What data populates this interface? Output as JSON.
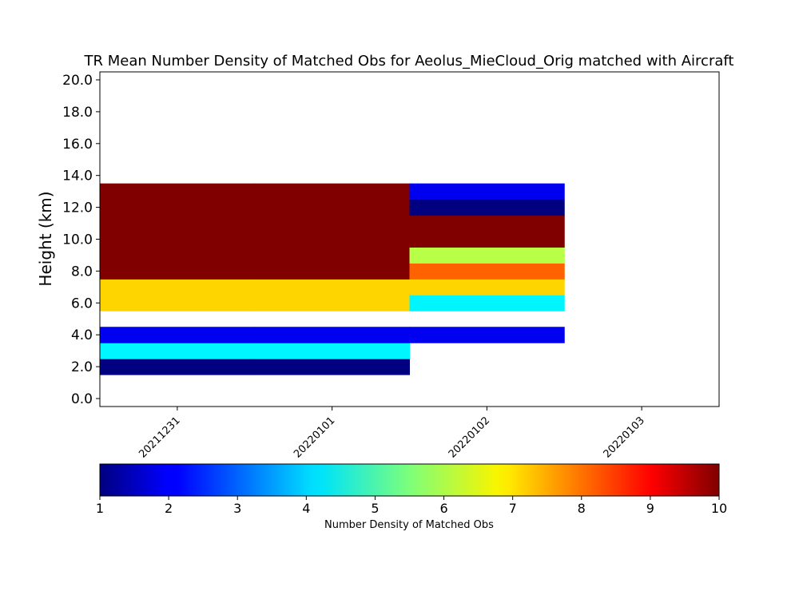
{
  "chart_data": {
    "type": "heatmap",
    "title": "TR Mean Number Density of Matched Obs for Aeolus_MieCloud_Orig matched with Aircraft",
    "ylabel": "Height (km)",
    "xlabel": "",
    "x_categories": [
      "20211231",
      "20220101",
      "20220102",
      "20220103"
    ],
    "y_ticks": [
      0,
      2,
      4,
      6,
      8,
      10,
      12,
      14,
      16,
      18,
      20
    ],
    "y_tick_labels": [
      "0.0",
      "2.0",
      "4.0",
      "6.0",
      "8.0",
      "10.0",
      "12.0",
      "14.0",
      "16.0",
      "18.0",
      "20.0"
    ],
    "ylim": [
      -0.5,
      20.5
    ],
    "xlim": [
      20211230.5,
      20220103.5
    ],
    "cells": [
      {
        "x": "20211231",
        "height": 2,
        "value": 1
      },
      {
        "x": "20211231",
        "height": 3,
        "value": 4.3
      },
      {
        "x": "20211231",
        "height": 4,
        "value": 2
      },
      {
        "x": "20211231",
        "height": 6,
        "value": 7
      },
      {
        "x": "20211231",
        "height": 7,
        "value": 7
      },
      {
        "x": "20211231",
        "height": 8,
        "value": 10
      },
      {
        "x": "20211231",
        "height": 9,
        "value": 10
      },
      {
        "x": "20211231",
        "height": 10,
        "value": 10
      },
      {
        "x": "20211231",
        "height": 11,
        "value": 10
      },
      {
        "x": "20211231",
        "height": 12,
        "value": 10
      },
      {
        "x": "20211231",
        "height": 13,
        "value": 10
      },
      {
        "x": "20220101",
        "height": 2,
        "value": 1
      },
      {
        "x": "20220101",
        "height": 3,
        "value": 4.3
      },
      {
        "x": "20220101",
        "height": 4,
        "value": 2
      },
      {
        "x": "20220101",
        "height": 6,
        "value": 7
      },
      {
        "x": "20220101",
        "height": 7,
        "value": 7
      },
      {
        "x": "20220101",
        "height": 8,
        "value": 10
      },
      {
        "x": "20220101",
        "height": 9,
        "value": 10
      },
      {
        "x": "20220101",
        "height": 10,
        "value": 10
      },
      {
        "x": "20220101",
        "height": 11,
        "value": 10
      },
      {
        "x": "20220101",
        "height": 12,
        "value": 10
      },
      {
        "x": "20220101",
        "height": 13,
        "value": 10
      },
      {
        "x": "20220102",
        "height": 4,
        "value": 2
      },
      {
        "x": "20220102",
        "height": 6,
        "value": 4.3
      },
      {
        "x": "20220102",
        "height": 7,
        "value": 7
      },
      {
        "x": "20220102",
        "height": 8,
        "value": 8
      },
      {
        "x": "20220102",
        "height": 9,
        "value": 6
      },
      {
        "x": "20220102",
        "height": 10,
        "value": 10
      },
      {
        "x": "20220102",
        "height": 11,
        "value": 10
      },
      {
        "x": "20220102",
        "height": 12,
        "value": 1
      },
      {
        "x": "20220102",
        "height": 13,
        "value": 2
      }
    ],
    "colorbar": {
      "label": "Number Density of Matched Obs",
      "min": 1,
      "max": 10,
      "ticks": [
        1,
        2,
        3,
        4,
        5,
        6,
        7,
        8,
        9,
        10
      ],
      "colormap": "jet"
    }
  }
}
